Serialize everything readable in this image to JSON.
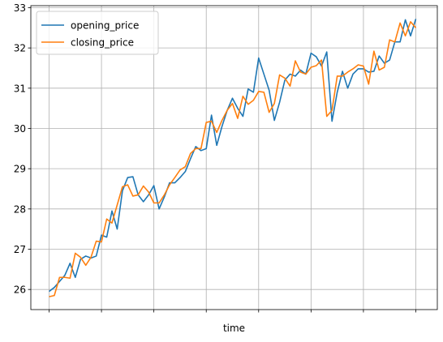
{
  "chart_data": {
    "type": "line",
    "title": "",
    "xlabel": "time",
    "ylabel": "",
    "ylim": [
      25.5,
      33.05
    ],
    "yticks": [
      26,
      27,
      28,
      29,
      30,
      31,
      32,
      33
    ],
    "xtick_count": 8,
    "grid": true,
    "legend_position": "top-left",
    "series": [
      {
        "name": "opening_price",
        "color": "#1f77b4",
        "values": [
          25.95,
          26.05,
          26.2,
          26.35,
          26.65,
          26.3,
          26.75,
          26.83,
          26.78,
          26.83,
          27.35,
          27.3,
          27.95,
          27.5,
          28.45,
          28.78,
          28.8,
          28.35,
          28.18,
          28.35,
          28.58,
          28.0,
          28.3,
          28.65,
          28.65,
          28.78,
          28.93,
          29.25,
          29.55,
          29.45,
          29.5,
          30.33,
          29.58,
          30.05,
          30.45,
          30.75,
          30.5,
          30.3,
          30.98,
          30.9,
          31.75,
          31.35,
          30.95,
          30.2,
          30.65,
          31.2,
          31.35,
          31.3,
          31.45,
          31.35,
          31.87,
          31.78,
          31.55,
          31.9,
          30.18,
          30.9,
          31.42,
          31.0,
          31.35,
          31.48,
          31.48,
          31.4,
          31.42,
          31.8,
          31.62,
          31.7,
          32.15,
          32.15,
          32.7,
          32.3,
          32.72
        ]
      },
      {
        "name": "closing_price",
        "color": "#ff7f0e",
        "values": [
          25.82,
          25.85,
          26.3,
          26.3,
          26.28,
          26.9,
          26.8,
          26.6,
          26.8,
          27.2,
          27.18,
          27.75,
          27.65,
          28.1,
          28.55,
          28.6,
          28.32,
          28.35,
          28.57,
          28.42,
          28.15,
          28.15,
          28.35,
          28.6,
          28.78,
          28.97,
          29.05,
          29.38,
          29.5,
          29.5,
          30.15,
          30.18,
          29.9,
          30.2,
          30.45,
          30.62,
          30.25,
          30.8,
          30.6,
          30.7,
          30.92,
          30.9,
          30.4,
          30.62,
          31.33,
          31.25,
          31.05,
          31.68,
          31.4,
          31.35,
          31.52,
          31.56,
          31.7,
          30.3,
          30.45,
          31.3,
          31.3,
          31.4,
          31.48,
          31.58,
          31.55,
          31.1,
          31.92,
          31.45,
          31.52,
          32.2,
          32.15,
          32.62,
          32.3,
          32.65,
          32.5
        ]
      }
    ]
  }
}
